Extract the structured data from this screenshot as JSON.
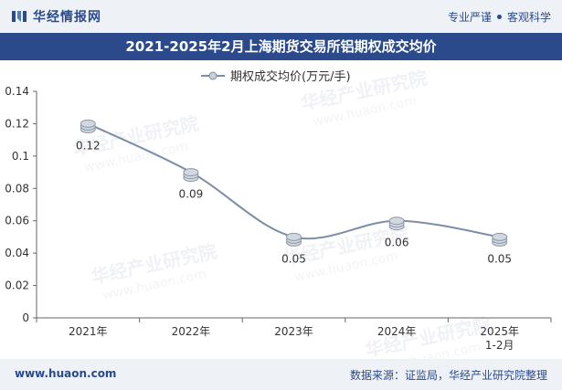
{
  "header": {
    "brand_name": "华经情报网",
    "slogan_left": "专业严谨",
    "slogan_right": "客观科学"
  },
  "footer": {
    "website": "www.huaon.com",
    "source": "数据来源：证监局，华经产业研究院整理"
  },
  "watermark": {
    "cn": "华经产业研究院",
    "en": "www.huaon.com"
  },
  "colors": {
    "brand": "#2b4a8b",
    "line": "#7d8ea8",
    "bar_bg": "#eef1f6"
  },
  "chart_data": {
    "type": "line",
    "title": "2021-2025年2月上海期货交易所铝期权成交均价",
    "categories": [
      "2021年",
      "2022年",
      "2023年",
      "2024年",
      "2025年 1-2月"
    ],
    "series": [
      {
        "name": "期权成交均价(万元/手)",
        "values": [
          0.12,
          0.09,
          0.05,
          0.06,
          0.05
        ]
      }
    ],
    "data_labels": [
      "0.12",
      "0.09",
      "0.05",
      "0.06",
      "0.05"
    ],
    "y_ticks": [
      "0",
      "0.02",
      "0.04",
      "0.06",
      "0.08",
      "0.1",
      "0.12",
      "0.14"
    ],
    "ylim": [
      0,
      0.14
    ],
    "xlabel": "",
    "ylabel": "",
    "grid": false,
    "legend_position": "top-center"
  }
}
